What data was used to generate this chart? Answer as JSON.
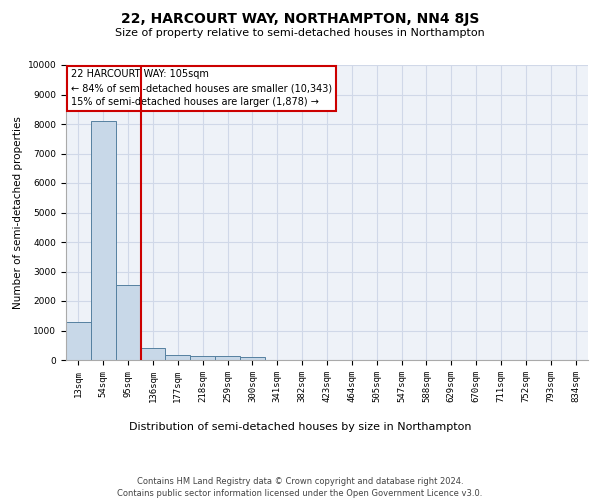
{
  "title": "22, HARCOURT WAY, NORTHAMPTON, NN4 8JS",
  "subtitle": "Size of property relative to semi-detached houses in Northampton",
  "xlabel": "Distribution of semi-detached houses by size in Northampton",
  "ylabel": "Number of semi-detached properties",
  "footer_line1": "Contains HM Land Registry data © Crown copyright and database right 2024.",
  "footer_line2": "Contains public sector information licensed under the Open Government Licence v3.0.",
  "annotation_line1": "22 HARCOURT WAY: 105sqm",
  "annotation_line2": "← 84% of semi-detached houses are smaller (10,343)",
  "annotation_line3": "15% of semi-detached houses are larger (1,878) →",
  "bar_labels": [
    "13sqm",
    "54sqm",
    "95sqm",
    "136sqm",
    "177sqm",
    "218sqm",
    "259sqm",
    "300sqm",
    "341sqm",
    "382sqm",
    "423sqm",
    "464sqm",
    "505sqm",
    "547sqm",
    "588sqm",
    "629sqm",
    "670sqm",
    "711sqm",
    "752sqm",
    "793sqm",
    "834sqm"
  ],
  "bar_values": [
    1300,
    8100,
    2550,
    400,
    175,
    150,
    120,
    100,
    0,
    0,
    0,
    0,
    0,
    0,
    0,
    0,
    0,
    0,
    0,
    0,
    0
  ],
  "bar_color": "#c8d8e8",
  "bar_edge_color": "#5580a0",
  "vline_x": 2.5,
  "vline_color": "#cc0000",
  "annotation_box_color": "#cc0000",
  "ylim": [
    0,
    10000
  ],
  "yticks": [
    0,
    1000,
    2000,
    3000,
    4000,
    5000,
    6000,
    7000,
    8000,
    9000,
    10000
  ],
  "grid_color": "#d0d8e8",
  "bg_color": "#eef2f8",
  "title_fontsize": 10,
  "subtitle_fontsize": 8,
  "ylabel_fontsize": 7.5,
  "xlabel_fontsize": 8,
  "tick_fontsize": 6.5,
  "annotation_fontsize": 7,
  "footer_fontsize": 6
}
